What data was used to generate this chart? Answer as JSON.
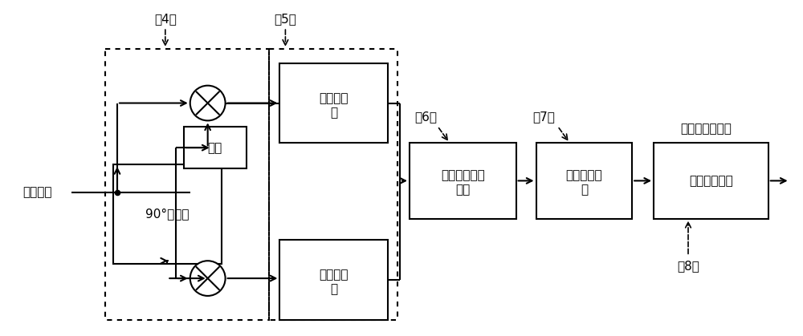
{
  "bg_color": "#ffffff",
  "text_color": "#000000",
  "signal_input": "信号输入",
  "binary_output": "二进制信息输出",
  "phase_shifter": "90°相移器",
  "local_osc": "本振",
  "lpf1": "低通滤波器",
  "lpf2": "低通滤波器",
  "lpf1_line2": "器",
  "lpf2_line2": "器",
  "baseband_l1": "基带信号同步",
  "baseband_l2": "模块",
  "symbol_demod_l1": "符号解调模",
  "symbol_demod_l2": "块",
  "info_convert": "信息变换模块",
  "label4": "（4）",
  "label5": "（5）",
  "label6": "（6）",
  "label7": "（7）",
  "label8": "（8）",
  "lpf_line1": "低通滤波",
  "lpf_line2": "器"
}
